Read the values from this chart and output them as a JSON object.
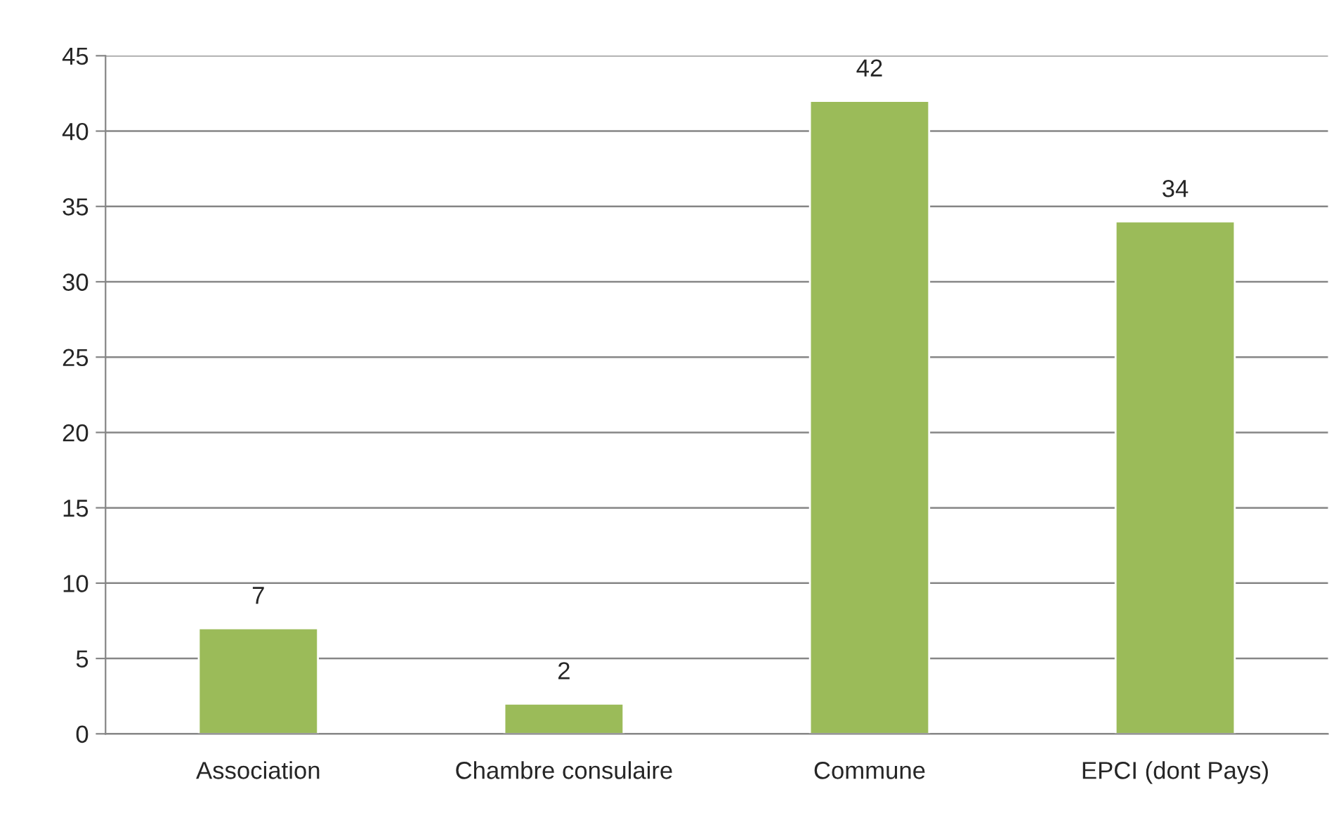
{
  "chart_data": {
    "type": "bar",
    "categories": [
      "Association",
      "Chambre consulaire",
      "Commune",
      "EPCI (dont Pays)"
    ],
    "values": [
      7,
      2,
      42,
      34
    ],
    "color": "#9bbb59",
    "ylim": [
      0,
      45
    ],
    "yticks": [
      0,
      5,
      10,
      15,
      20,
      25,
      30,
      35,
      40,
      45
    ],
    "grid": "y",
    "data_labels": true
  }
}
